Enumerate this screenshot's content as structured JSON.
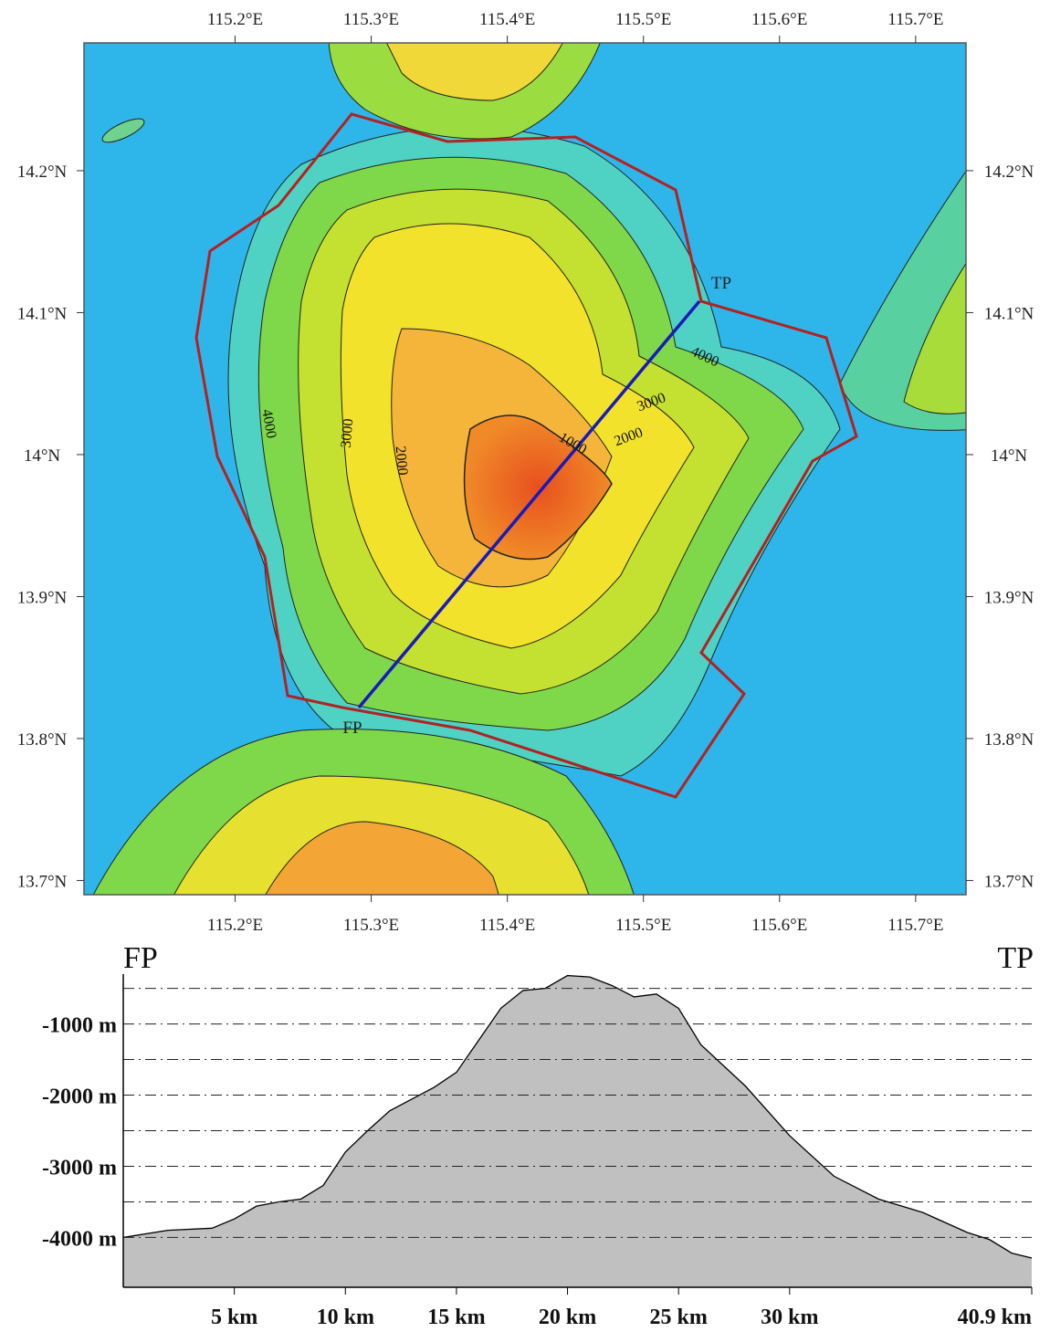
{
  "map": {
    "xlim": [
      115.089,
      115.737
    ],
    "ylim": [
      13.69,
      14.29
    ],
    "xticks": [
      {
        "value": 115.2,
        "label": "115.2°E"
      },
      {
        "value": 115.3,
        "label": "115.3°E"
      },
      {
        "value": 115.4,
        "label": "115.4°E"
      },
      {
        "value": 115.5,
        "label": "115.5°E"
      },
      {
        "value": 115.6,
        "label": "115.6°E"
      },
      {
        "value": 115.7,
        "label": "115.7°E"
      }
    ],
    "yticks": [
      {
        "value": 14.2,
        "label": "14.2°N"
      },
      {
        "value": 14.1,
        "label": "14.1°N"
      },
      {
        "value": 14,
        "label": "14°N"
      },
      {
        "value": 13.9,
        "label": "13.9°N"
      },
      {
        "value": 13.8,
        "label": "13.8°N"
      },
      {
        "value": 13.7,
        "label": "13.7°N"
      }
    ],
    "from_label": "FP",
    "to_label": "TP",
    "contour_labels": [
      "4000",
      "3000",
      "2000",
      "1000",
      "4000",
      "3000",
      "2000"
    ]
  },
  "chart_data": {
    "type": "area",
    "start_label": "FP",
    "end_label": "TP",
    "x": [
      0,
      2,
      4,
      5,
      6,
      7,
      8,
      9,
      10,
      11,
      12,
      14,
      15,
      16,
      17,
      18,
      19,
      20,
      21,
      22,
      23,
      24,
      25,
      26,
      28,
      30,
      32,
      34,
      36,
      38,
      39,
      40,
      40.9
    ],
    "values": [
      -4000,
      -3900,
      -3870,
      -3740,
      -3560,
      -3500,
      -3460,
      -3270,
      -2800,
      -2500,
      -2220,
      -1890,
      -1680,
      -1230,
      -780,
      -530,
      -500,
      -320,
      -340,
      -460,
      -620,
      -580,
      -780,
      -1290,
      -1870,
      -2570,
      -3140,
      -3460,
      -3650,
      -3930,
      -4030,
      -4220,
      -4290
    ],
    "color": "#c0c0c0",
    "xlim": [
      0,
      40.9
    ],
    "ylim": [
      -4700,
      -300
    ],
    "xticks": [
      {
        "value": 5,
        "label": "5 km"
      },
      {
        "value": 10,
        "label": "10 km"
      },
      {
        "value": 15,
        "label": "15 km"
      },
      {
        "value": 20,
        "label": "20 km"
      },
      {
        "value": 25,
        "label": "25 km"
      },
      {
        "value": 30,
        "label": "30 km"
      },
      {
        "value": 40.9,
        "label": "40.9 km"
      }
    ],
    "yticks": [
      {
        "value": -1000,
        "label": "-1000 m"
      },
      {
        "value": -2000,
        "label": "-2000 m"
      },
      {
        "value": -3000,
        "label": "-3000 m"
      },
      {
        "value": -4000,
        "label": "-4000 m"
      }
    ],
    "y_minor_ticks": [
      -500,
      -1500,
      -2500,
      -3500
    ],
    "grid": true
  }
}
